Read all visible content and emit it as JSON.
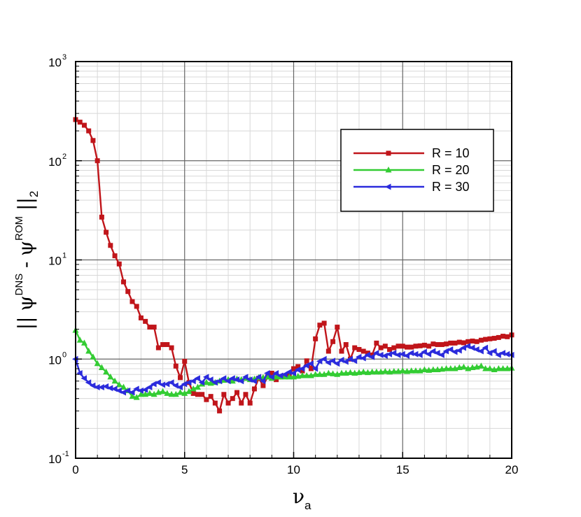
{
  "chart_data": {
    "type": "line",
    "xlabel": "ν",
    "xlabel_sub": "a",
    "ylabel_parts": {
      "left_bars": "||",
      "psi1": "ψ",
      "sup1": "DNS",
      "minus": " - ",
      "psi2": "ψ",
      "sup2": "ROM",
      "right_bars": "||",
      "sub": "2"
    },
    "xlim": [
      0,
      20
    ],
    "x_ticks": [
      0,
      5,
      10,
      15,
      20
    ],
    "y_scale": "log",
    "ylim": [
      0.1,
      1000
    ],
    "y_ticks": [
      {
        "value": 0.1,
        "base": "10",
        "exp": "-1"
      },
      {
        "value": 1,
        "base": "10",
        "exp": "0"
      },
      {
        "value": 10,
        "base": "10",
        "exp": "1"
      },
      {
        "value": 100,
        "base": "10",
        "exp": "2"
      },
      {
        "value": 1000,
        "base": "10",
        "exp": "3"
      }
    ],
    "grid": true,
    "legend_position": "upper-right",
    "series": [
      {
        "name": "R = 10",
        "color": "#c0151a",
        "marker": "square",
        "x": [
          0,
          0.2,
          0.4,
          0.6,
          0.8,
          1.0,
          1.2,
          1.4,
          1.6,
          1.8,
          2.0,
          2.2,
          2.4,
          2.6,
          2.8,
          3.0,
          3.2,
          3.4,
          3.6,
          3.8,
          4.0,
          4.2,
          4.4,
          4.6,
          4.8,
          5.0,
          5.2,
          5.4,
          5.6,
          5.8,
          6.0,
          6.2,
          6.4,
          6.6,
          6.8,
          7.0,
          7.2,
          7.4,
          7.6,
          7.8,
          8.0,
          8.2,
          8.4,
          8.6,
          8.8,
          9.0,
          9.2,
          9.4,
          9.6,
          9.8,
          10.0,
          10.2,
          10.4,
          10.6,
          10.8,
          11.0,
          11.2,
          11.4,
          11.6,
          11.8,
          12.0,
          12.2,
          12.4,
          12.6,
          12.8,
          13.0,
          13.2,
          13.4,
          13.6,
          13.8,
          14.0,
          14.2,
          14.4,
          14.6,
          14.8,
          15.0,
          15.2,
          15.4,
          15.6,
          15.8,
          16.0,
          16.2,
          16.4,
          16.6,
          16.8,
          17.0,
          17.2,
          17.4,
          17.6,
          17.8,
          18.0,
          18.2,
          18.4,
          18.6,
          18.8,
          19.0,
          19.2,
          19.4,
          19.6,
          19.8,
          20.0
        ],
        "y": [
          260,
          245,
          228,
          200,
          160,
          100,
          27,
          19,
          14,
          11,
          9.1,
          6,
          4.8,
          3.8,
          3.4,
          2.6,
          2.4,
          2.1,
          2.1,
          1.3,
          1.4,
          1.4,
          1.3,
          0.85,
          0.65,
          0.95,
          0.58,
          0.45,
          0.44,
          0.44,
          0.39,
          0.42,
          0.36,
          0.3,
          0.44,
          0.36,
          0.4,
          0.46,
          0.36,
          0.44,
          0.36,
          0.5,
          0.64,
          0.54,
          0.66,
          0.72,
          0.62,
          0.66,
          0.68,
          0.7,
          0.8,
          0.84,
          0.76,
          0.96,
          0.8,
          1.6,
          2.2,
          2.3,
          1.2,
          1.5,
          2.1,
          1.2,
          1.4,
          1.0,
          1.3,
          1.25,
          1.2,
          1.15,
          1.1,
          1.45,
          1.3,
          1.35,
          1.25,
          1.3,
          1.35,
          1.35,
          1.32,
          1.32,
          1.35,
          1.36,
          1.38,
          1.35,
          1.42,
          1.4,
          1.4,
          1.42,
          1.45,
          1.45,
          1.48,
          1.46,
          1.5,
          1.52,
          1.5,
          1.55,
          1.58,
          1.6,
          1.62,
          1.65,
          1.7,
          1.68,
          1.75
        ]
      },
      {
        "name": "R = 20",
        "color": "#33cc33",
        "marker": "triangle",
        "x": [
          0,
          0.2,
          0.4,
          0.6,
          0.8,
          1.0,
          1.2,
          1.4,
          1.6,
          1.8,
          2.0,
          2.2,
          2.4,
          2.6,
          2.8,
          3.0,
          3.2,
          3.4,
          3.6,
          3.8,
          4.0,
          4.2,
          4.4,
          4.6,
          4.8,
          5.0,
          5.2,
          5.4,
          5.6,
          5.8,
          6.0,
          6.2,
          6.4,
          6.6,
          6.8,
          7.0,
          7.2,
          7.4,
          7.6,
          7.8,
          8.0,
          8.2,
          8.4,
          8.6,
          8.8,
          9.0,
          9.2,
          9.4,
          9.6,
          9.8,
          10.0,
          10.2,
          10.4,
          10.6,
          10.8,
          11.0,
          11.2,
          11.4,
          11.6,
          11.8,
          12.0,
          12.2,
          12.4,
          12.6,
          12.8,
          13.0,
          13.2,
          13.4,
          13.6,
          13.8,
          14.0,
          14.2,
          14.4,
          14.6,
          14.8,
          15.0,
          15.2,
          15.4,
          15.6,
          15.8,
          16.0,
          16.2,
          16.4,
          16.6,
          16.8,
          17.0,
          17.2,
          17.4,
          17.6,
          17.8,
          18.0,
          18.2,
          18.4,
          18.6,
          18.8,
          19.0,
          19.2,
          19.4,
          19.6,
          19.8,
          20.0
        ],
        "y": [
          1.95,
          1.55,
          1.45,
          1.2,
          1.05,
          0.9,
          0.82,
          0.74,
          0.66,
          0.6,
          0.55,
          0.52,
          0.48,
          0.42,
          0.41,
          0.44,
          0.44,
          0.45,
          0.44,
          0.46,
          0.47,
          0.45,
          0.44,
          0.44,
          0.46,
          0.45,
          0.47,
          0.5,
          0.52,
          0.56,
          0.58,
          0.57,
          0.58,
          0.6,
          0.61,
          0.62,
          0.6,
          0.63,
          0.62,
          0.64,
          0.62,
          0.63,
          0.65,
          0.65,
          0.66,
          0.64,
          0.66,
          0.66,
          0.66,
          0.66,
          0.66,
          0.67,
          0.68,
          0.68,
          0.68,
          0.7,
          0.7,
          0.7,
          0.72,
          0.71,
          0.7,
          0.72,
          0.72,
          0.73,
          0.72,
          0.73,
          0.74,
          0.73,
          0.74,
          0.74,
          0.74,
          0.75,
          0.74,
          0.75,
          0.75,
          0.76,
          0.75,
          0.76,
          0.76,
          0.76,
          0.78,
          0.77,
          0.78,
          0.78,
          0.79,
          0.8,
          0.8,
          0.8,
          0.82,
          0.83,
          0.8,
          0.82,
          0.83,
          0.85,
          0.8,
          0.8,
          0.78,
          0.8,
          0.8,
          0.8,
          0.81
        ]
      },
      {
        "name": "R = 30",
        "color": "#2b2bdc",
        "marker": "left-triangle",
        "x": [
          0,
          0.2,
          0.4,
          0.6,
          0.8,
          1.0,
          1.2,
          1.4,
          1.6,
          1.8,
          2.0,
          2.2,
          2.4,
          2.6,
          2.8,
          3.0,
          3.2,
          3.4,
          3.6,
          3.8,
          4.0,
          4.2,
          4.4,
          4.6,
          4.8,
          5.0,
          5.2,
          5.4,
          5.6,
          5.8,
          6.0,
          6.2,
          6.4,
          6.6,
          6.8,
          7.0,
          7.2,
          7.4,
          7.6,
          7.8,
          8.0,
          8.2,
          8.4,
          8.6,
          8.8,
          9.0,
          9.2,
          9.4,
          9.6,
          9.8,
          10.0,
          10.2,
          10.4,
          10.6,
          10.8,
          11.0,
          11.2,
          11.4,
          11.6,
          11.8,
          12.0,
          12.2,
          12.4,
          12.6,
          12.8,
          13.0,
          13.2,
          13.4,
          13.6,
          13.8,
          14.0,
          14.2,
          14.4,
          14.6,
          14.8,
          15.0,
          15.2,
          15.4,
          15.6,
          15.8,
          16.0,
          16.2,
          16.4,
          16.6,
          16.8,
          17.0,
          17.2,
          17.4,
          17.6,
          17.8,
          18.0,
          18.2,
          18.4,
          18.6,
          18.8,
          19.0,
          19.2,
          19.4,
          19.6,
          19.8,
          20.0
        ],
        "y": [
          1.0,
          0.72,
          0.64,
          0.58,
          0.54,
          0.52,
          0.52,
          0.53,
          0.51,
          0.5,
          0.48,
          0.46,
          0.48,
          0.46,
          0.5,
          0.48,
          0.49,
          0.52,
          0.56,
          0.58,
          0.55,
          0.56,
          0.58,
          0.54,
          0.52,
          0.56,
          0.58,
          0.6,
          0.64,
          0.58,
          0.66,
          0.62,
          0.58,
          0.6,
          0.64,
          0.6,
          0.64,
          0.62,
          0.6,
          0.66,
          0.62,
          0.6,
          0.66,
          0.6,
          0.72,
          0.66,
          0.72,
          0.68,
          0.7,
          0.74,
          0.72,
          0.78,
          0.8,
          0.86,
          0.9,
          0.8,
          0.95,
          1.0,
          0.92,
          0.96,
          0.9,
          0.98,
          0.94,
          1.0,
          0.96,
          1.05,
          1.02,
          1.1,
          1.05,
          1.15,
          1.1,
          1.08,
          1.12,
          1.15,
          1.1,
          1.12,
          1.08,
          1.15,
          1.12,
          1.1,
          1.18,
          1.12,
          1.2,
          1.15,
          1.1,
          1.2,
          1.25,
          1.18,
          1.22,
          1.3,
          1.35,
          1.3,
          1.25,
          1.2,
          1.3,
          1.15,
          1.2,
          1.1,
          1.15,
          1.12,
          1.1
        ]
      }
    ]
  }
}
